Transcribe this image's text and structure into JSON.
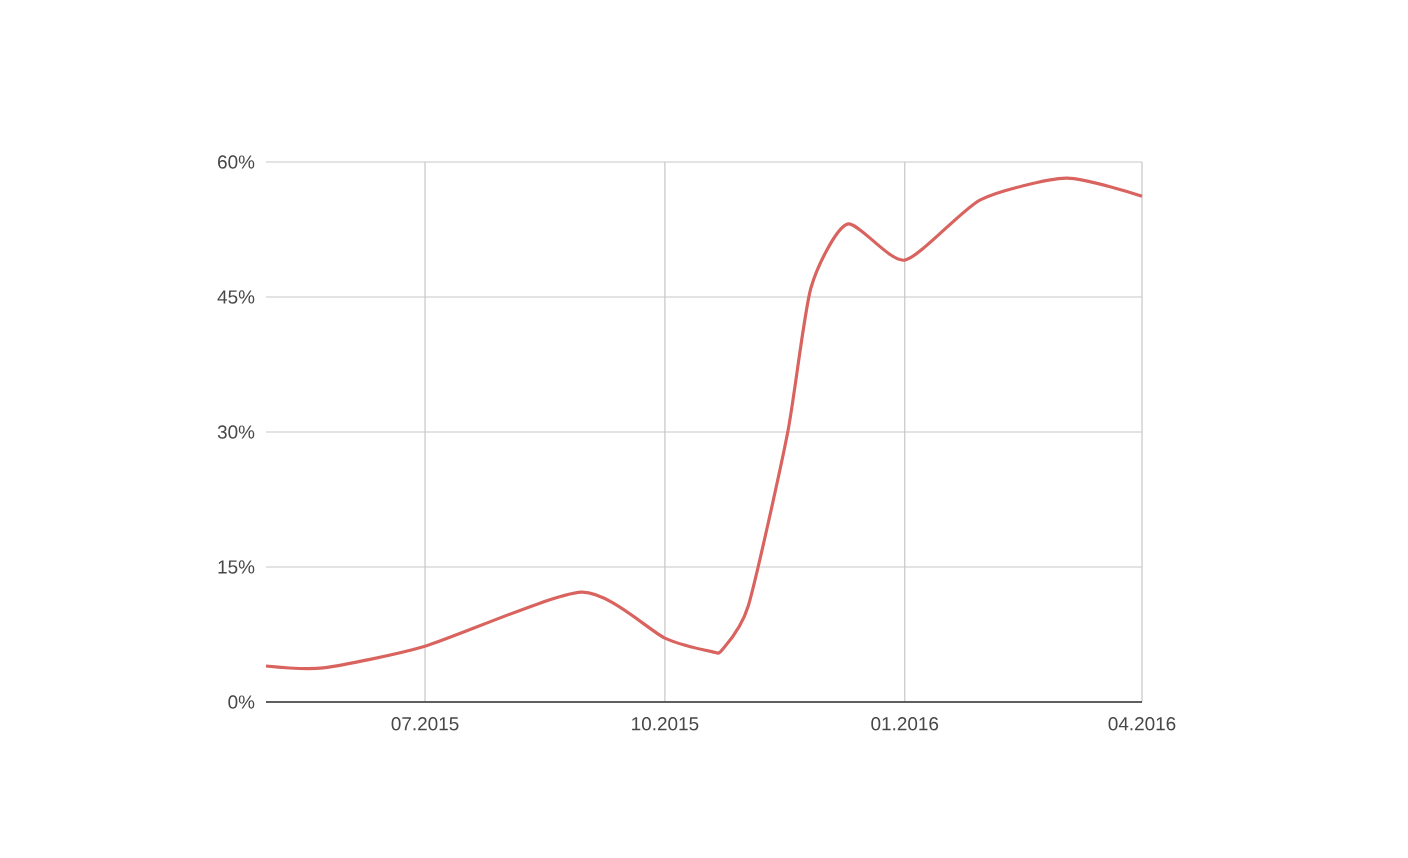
{
  "chart_data": {
    "type": "line",
    "x": [
      "2015-05-01",
      "2015-05-23",
      "2015-07-01",
      "2015-08-30",
      "2015-10-01",
      "2015-10-19",
      "2015-10-23",
      "2015-11-02",
      "2015-11-17",
      "2015-11-26",
      "2015-12-10",
      "2016-01-01",
      "2016-01-30",
      "2016-03-03",
      "2016-04-01"
    ],
    "series": [
      {
        "color": "#d9645f",
        "values": [
          4,
          3.8,
          6.2,
          12.2,
          7.1,
          5.6,
          5.8,
          10.7,
          29.8,
          46,
          53.1,
          49.1,
          55.8,
          58.2,
          56.2
        ]
      }
    ],
    "xlim": [
      "2015-05-01",
      "2016-04-01"
    ],
    "xticks": [
      {
        "value": "2015-07-01",
        "label": "07.2015"
      },
      {
        "value": "2015-10-01",
        "label": "10.2015"
      },
      {
        "value": "2016-01-01",
        "label": "01.2016"
      },
      {
        "value": "2016-04-01",
        "label": "04.2016"
      }
    ],
    "ylim": [
      0,
      60
    ],
    "yticks": [
      {
        "value": 0,
        "label": "0%"
      },
      {
        "value": 15,
        "label": "15%"
      },
      {
        "value": 30,
        "label": "30%"
      },
      {
        "value": 45,
        "label": "45%"
      },
      {
        "value": 60,
        "label": "60%"
      }
    ],
    "grid": true,
    "marker": "none",
    "line_style": "solid"
  }
}
